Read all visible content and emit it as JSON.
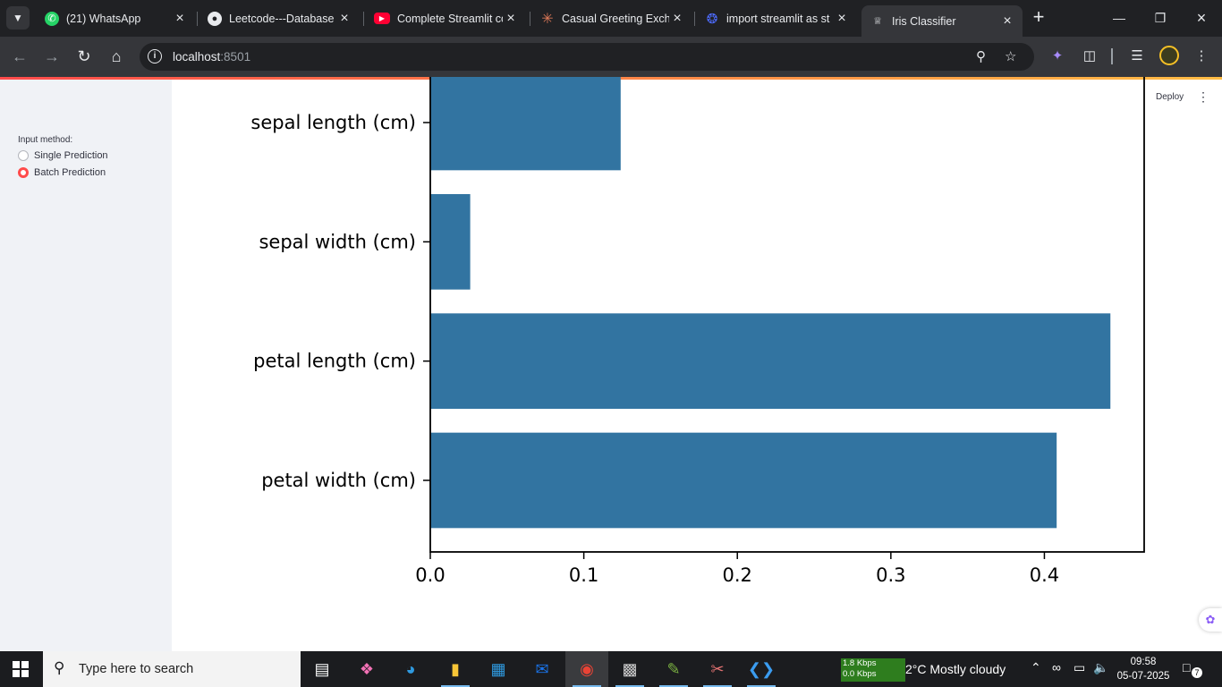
{
  "browser": {
    "tabs": [
      {
        "title": "(21) WhatsApp",
        "icon": "whatsapp-icon",
        "color": "#25d366"
      },
      {
        "title": "Leetcode---Database",
        "icon": "github-icon",
        "color": "#ffffff"
      },
      {
        "title": "Complete Streamlit co",
        "icon": "youtube-icon",
        "color": "#ff0033"
      },
      {
        "title": "Casual Greeting Exch",
        "icon": "claude-icon",
        "color": "#d97757"
      },
      {
        "title": "import streamlit as st",
        "icon": "deepseek-icon",
        "color": "#4d6bfe"
      },
      {
        "title": "Iris Classifier",
        "icon": "streamlit-icon",
        "color": "#ff4b4b"
      }
    ],
    "active_tab": 5,
    "url_host": "localhost",
    "url_port": ":8501"
  },
  "app": {
    "deploy_label": "Deploy",
    "sidebar": {
      "input_label": "Input method:",
      "options": [
        {
          "label": "Single Prediction",
          "selected": false
        },
        {
          "label": "Batch Prediction",
          "selected": true
        }
      ]
    }
  },
  "chart_data": {
    "type": "bar",
    "orientation": "horizontal",
    "categories": [
      "sepal length (cm)",
      "sepal width (cm)",
      "petal length (cm)",
      "petal width (cm)"
    ],
    "values": [
      0.124,
      0.026,
      0.443,
      0.408
    ],
    "xticks": [
      "0.0",
      "0.1",
      "0.2",
      "0.3",
      "0.4"
    ],
    "xlim": [
      0,
      0.465
    ],
    "bar_color": "#3274a1",
    "grid": false
  },
  "taskbar": {
    "search_placeholder": "Type here to search",
    "net_up": "1.8 Kbps",
    "net_down": "0.0 Kbps",
    "weather": "2°C  Mostly cloudy",
    "time": "09:58",
    "date": "05-07-2025",
    "notification_count": "7"
  }
}
